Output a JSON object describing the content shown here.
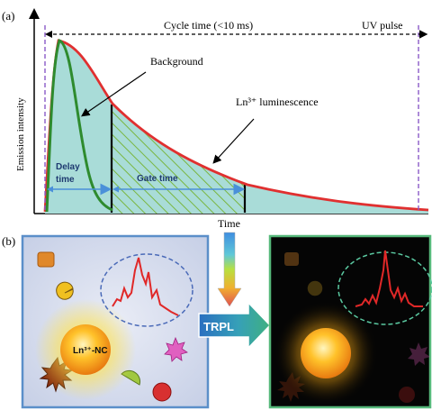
{
  "panel_a": {
    "label": "(a)",
    "cycle_time": "Cycle time (<10 ms)",
    "uv_pulse": "UV pulse",
    "background": "Background",
    "luminescence": "Ln³⁺ luminescence",
    "y_axis_label": "Emission intensity",
    "delay_time_line1": "Delay",
    "delay_time_line2": "time",
    "gate_time": "Gate time",
    "x_axis_label": "Time"
  },
  "panel_b": {
    "label": "(b)",
    "nc_label": "Ln³⁺-NC",
    "trpl": "TRPL"
  },
  "colors": {
    "luminescence_curve": "#e03030",
    "background_curve": "#2e8b2e",
    "area_fill": "#a9dcd8",
    "gate_hatch": "#7ab640",
    "dash_purple": "#8a5ac8",
    "arrow_blue": "#4a90d9",
    "frame_left": "#5b8fc9",
    "frame_right": "#56b87a"
  }
}
